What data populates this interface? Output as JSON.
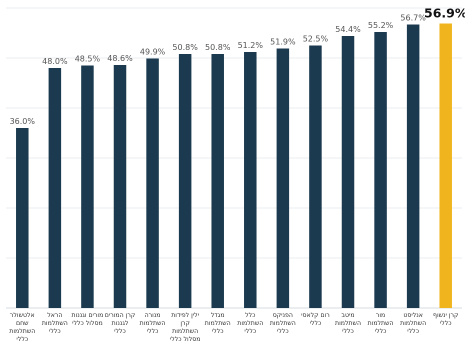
{
  "chart_data": {
    "type": "bar",
    "direction": "rtl",
    "ylim": [
      0,
      60
    ],
    "grid": true,
    "highlight_index": 0,
    "colors": {
      "bar": "#1b3a4f",
      "highlight": "#f0b51e"
    },
    "categories": [
      [
        "קרן ינשוף",
        "כללי"
      ],
      [
        "אנליסט",
        "השתלמות",
        "כללי"
      ],
      [
        "מור",
        "השתלמות",
        "כללי"
      ],
      [
        "מיטב",
        "השתלמות",
        "כללי"
      ],
      [
        "רום קלאסי",
        "כללי"
      ],
      [
        "הפניקס",
        "השתלמות",
        "כללי"
      ],
      [
        "כלל",
        "השתלמות",
        "כללי"
      ],
      [
        "מגדל",
        "השתלמות",
        "כללי"
      ],
      [
        "ילין לפידות",
        "קרן",
        "השתלמות",
        "מסלול כללי"
      ],
      [
        "מנורה",
        "השתלמות",
        "כללי"
      ],
      [
        "קרן המורים",
        "לגננות",
        "כללי"
      ],
      [
        "מורים וגננות",
        "מסלול כללי"
      ],
      [
        "הראל",
        "השתלמות",
        "כללי"
      ],
      [
        "אלטשולר",
        "שחם",
        "השתלמות",
        "כללי"
      ]
    ],
    "values": [
      56.9,
      56.7,
      55.2,
      54.4,
      52.5,
      51.9,
      51.2,
      50.8,
      50.8,
      49.9,
      48.6,
      48.5,
      48.0,
      36.0
    ],
    "value_labels": [
      "56.9%",
      "56.7%",
      "55.2%",
      "54.4%",
      "52.5%",
      "51.9%",
      "51.2%",
      "50.8%",
      "50.8%",
      "49.9%",
      "48.6%",
      "48.5%",
      "48.0%",
      "36.0%"
    ]
  }
}
